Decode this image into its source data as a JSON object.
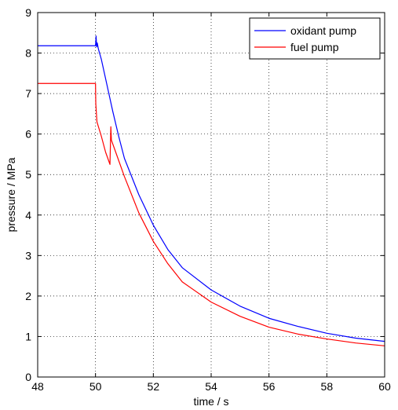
{
  "chart_data": {
    "type": "line",
    "title": "",
    "xlabel": "time / s",
    "ylabel": "pressure / MPa",
    "xlim": [
      48,
      60
    ],
    "ylim": [
      0,
      9
    ],
    "xticks": [
      "48",
      "50",
      "52",
      "54",
      "56",
      "58",
      "60"
    ],
    "yticks": [
      "0",
      "1",
      "2",
      "3",
      "4",
      "5",
      "6",
      "7",
      "8",
      "9"
    ],
    "grid": true,
    "legend_position": "top-right",
    "series": [
      {
        "name": "oxidant pump",
        "color": "#0000ff",
        "points": [
          [
            48,
            8.18
          ],
          [
            50,
            8.18
          ],
          [
            50.02,
            8.42
          ],
          [
            50.04,
            8.15
          ],
          [
            50.06,
            8.25
          ],
          [
            50.1,
            8.1
          ],
          [
            50.2,
            7.85
          ],
          [
            50.4,
            7.2
          ],
          [
            50.6,
            6.55
          ],
          [
            50.8,
            5.95
          ],
          [
            51,
            5.4
          ],
          [
            51.5,
            4.5
          ],
          [
            52,
            3.75
          ],
          [
            52.5,
            3.15
          ],
          [
            53,
            2.7
          ],
          [
            54,
            2.15
          ],
          [
            55,
            1.75
          ],
          [
            56,
            1.45
          ],
          [
            57,
            1.25
          ],
          [
            58,
            1.08
          ],
          [
            59,
            0.96
          ],
          [
            60,
            0.88
          ]
        ]
      },
      {
        "name": "fuel pump",
        "color": "#ff0000",
        "points": [
          [
            48,
            7.25
          ],
          [
            50,
            7.25
          ],
          [
            50.01,
            6.75
          ],
          [
            50.05,
            6.3
          ],
          [
            50.2,
            5.95
          ],
          [
            50.35,
            5.55
          ],
          [
            50.5,
            5.25
          ],
          [
            50.53,
            6.18
          ],
          [
            50.55,
            5.85
          ],
          [
            50.7,
            5.55
          ],
          [
            51,
            4.95
          ],
          [
            51.5,
            4.05
          ],
          [
            52,
            3.35
          ],
          [
            52.5,
            2.8
          ],
          [
            53,
            2.35
          ],
          [
            54,
            1.85
          ],
          [
            55,
            1.5
          ],
          [
            56,
            1.23
          ],
          [
            57,
            1.06
          ],
          [
            58,
            0.94
          ],
          [
            59,
            0.84
          ],
          [
            60,
            0.77
          ]
        ]
      }
    ]
  }
}
